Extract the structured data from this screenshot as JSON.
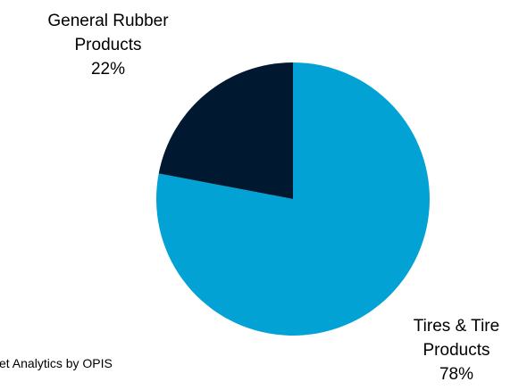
{
  "chart_data": {
    "type": "pie",
    "title": "",
    "slices": [
      {
        "label_lines": [
          "Tires & Tire",
          "Products"
        ],
        "value": 78,
        "value_label": "78%",
        "color": "#02A3D4"
      },
      {
        "label_lines": [
          "General Rubber",
          "Products"
        ],
        "value": 22,
        "value_label": "22%",
        "color": "#001931"
      }
    ],
    "start_angle_deg": 0,
    "direction": "clockwise",
    "legend": "none"
  },
  "source_text": "et Analytics by OPIS"
}
